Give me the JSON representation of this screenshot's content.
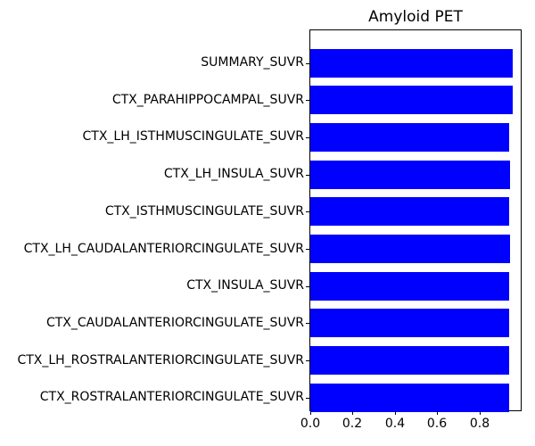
{
  "chart_data": {
    "type": "bar",
    "orientation": "horizontal",
    "title": "Amyloid PET",
    "categories": [
      "SUMMARY_SUVR",
      "CTX_PARAHIPPOCAMPAL_SUVR",
      "CTX_LH_ISTHMUSCINGULATE_SUVR",
      "CTX_LH_INSULA_SUVR",
      "CTX_ISTHMUSCINGULATE_SUVR",
      "CTX_LH_CAUDALANTERIORCINGULATE_SUVR",
      "CTX_INSULA_SUVR",
      "CTX_CAUDALANTERIORCINGULATE_SUVR",
      "CTX_LH_ROSTRALANTERIORCINGULATE_SUVR",
      "CTX_ROSTRALANTERIORCINGULATE_SUVR"
    ],
    "values": [
      0.957,
      0.958,
      0.94,
      0.942,
      0.94,
      0.942,
      0.941,
      0.94,
      0.939,
      0.938
    ],
    "xlabel": "",
    "ylabel": "",
    "xticks": [
      "0.0",
      "0.2",
      "0.4",
      "0.6",
      "0.8"
    ],
    "xtick_values": [
      0.0,
      0.2,
      0.4,
      0.6,
      0.8
    ],
    "xlim": [
      0.0,
      0.994
    ],
    "bar_color": "#0000ff",
    "spine_color": "#000000",
    "background_color": "#ffffff",
    "grid": false,
    "legend": null
  }
}
